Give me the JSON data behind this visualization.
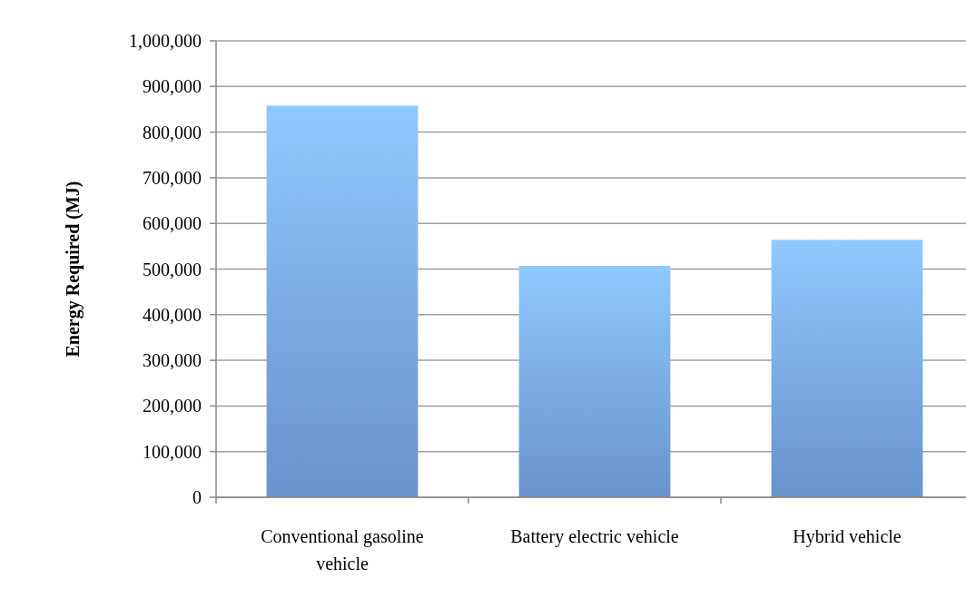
{
  "chart_data": {
    "type": "bar",
    "ylabel": "Energy Required (MJ)",
    "categories": [
      "Conventional gasoline vehicle",
      "Battery electric vehicle",
      "Hybrid vehicle"
    ],
    "values": [
      858000,
      507000,
      564000
    ],
    "color": "#78a8ea",
    "ylim": [
      0,
      1000000
    ],
    "yticks": [
      {
        "value": 0,
        "label": "0"
      },
      {
        "value": 100000,
        "label": "100,000"
      },
      {
        "value": 200000,
        "label": "200,000"
      },
      {
        "value": 300000,
        "label": "300,000"
      },
      {
        "value": 400000,
        "label": "400,000"
      },
      {
        "value": 500000,
        "label": "500,000"
      },
      {
        "value": 600000,
        "label": "600,000"
      },
      {
        "value": 700000,
        "label": "700,000"
      },
      {
        "value": 800000,
        "label": "800,000"
      },
      {
        "value": 900000,
        "label": "900,000"
      },
      {
        "value": 1000000,
        "label": "1,000,000"
      }
    ],
    "grid": "y"
  }
}
